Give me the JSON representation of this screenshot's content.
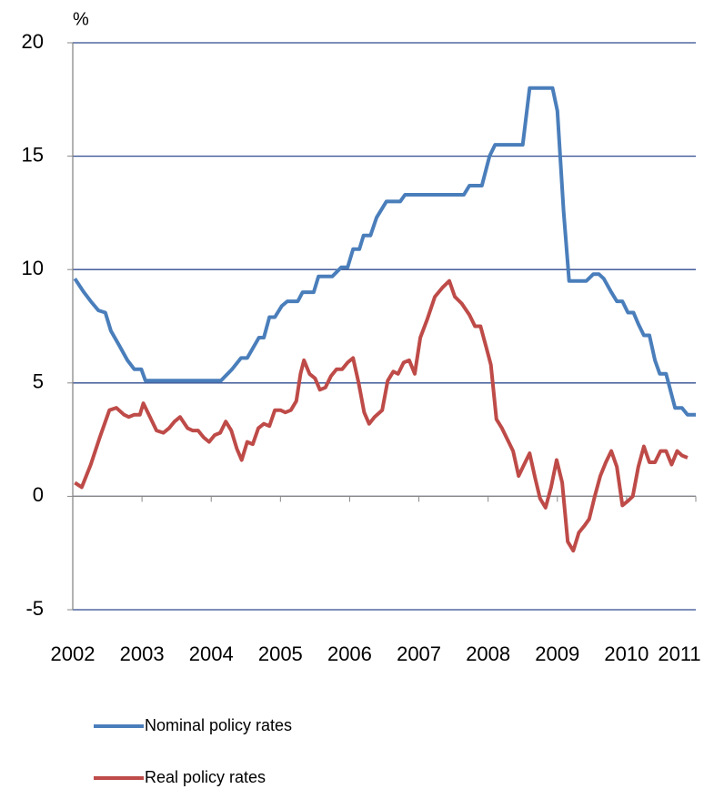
{
  "chart_data": {
    "type": "line",
    "y_label": "%",
    "xlim": [
      2002,
      2011
    ],
    "xticks": [
      2002,
      2003,
      2004,
      2005,
      2006,
      2007,
      2008,
      2009,
      2010,
      2011
    ],
    "ylim": [
      -5,
      20
    ],
    "yticks": [
      -5,
      0,
      5,
      10,
      15,
      20
    ],
    "grid": true,
    "legend": "bottom",
    "series": [
      {
        "name": "Nominal policy rates",
        "color": "#4a7ebb",
        "x": [
          2002.03,
          2002.16,
          2002.26,
          2002.37,
          2002.47,
          2002.55,
          2002.68,
          2002.79,
          2002.89,
          2002.99,
          2003.05,
          2004.14,
          2004.3,
          2004.43,
          2004.52,
          2004.69,
          2004.76,
          2004.84,
          2004.92,
          2005.02,
          2005.1,
          2005.25,
          2005.32,
          2005.48,
          2005.55,
          2005.75,
          2005.88,
          2005.97,
          2006.05,
          2006.14,
          2006.2,
          2006.3,
          2006.39,
          2006.53,
          2006.73,
          2006.8,
          2007.65,
          2007.73,
          2007.91,
          2008.02,
          2008.1,
          2008.5,
          2008.6,
          2008.93,
          2009.0,
          2009.09,
          2009.17,
          2009.42,
          2009.52,
          2009.6,
          2009.67,
          2009.78,
          2009.86,
          2009.94,
          2010.02,
          2010.1,
          2010.17,
          2010.25,
          2010.33,
          2010.41,
          2010.48,
          2010.57,
          2010.7,
          2010.8,
          2010.88,
          2011.0
        ],
        "values": [
          9.6,
          9.0,
          8.6,
          8.2,
          8.1,
          7.3,
          6.6,
          6.0,
          5.6,
          5.6,
          5.1,
          5.1,
          5.6,
          6.1,
          6.1,
          7.0,
          7.0,
          7.9,
          7.9,
          8.4,
          8.6,
          8.6,
          9.0,
          9.0,
          9.7,
          9.7,
          10.1,
          10.1,
          10.9,
          10.9,
          11.5,
          11.5,
          12.3,
          13.0,
          13.0,
          13.3,
          13.3,
          13.7,
          13.7,
          15.0,
          15.5,
          15.5,
          18.0,
          18.0,
          17.0,
          12.6,
          9.5,
          9.5,
          9.8,
          9.8,
          9.6,
          9.0,
          8.6,
          8.6,
          8.1,
          8.1,
          7.6,
          7.1,
          7.1,
          6.0,
          5.4,
          5.4,
          3.9,
          3.9,
          3.6,
          3.6
        ]
      },
      {
        "name": "Real policy rates",
        "color": "#be4b48",
        "x": [
          2002.03,
          2002.13,
          2002.26,
          2002.39,
          2002.53,
          2002.63,
          2002.74,
          2002.81,
          2002.89,
          2002.97,
          2003.02,
          2003.1,
          2003.21,
          2003.31,
          2003.39,
          2003.47,
          2003.55,
          2003.66,
          2003.73,
          2003.81,
          2003.89,
          2003.97,
          2004.05,
          2004.13,
          2004.21,
          2004.29,
          2004.37,
          2004.44,
          2004.52,
          2004.6,
          2004.68,
          2004.76,
          2004.84,
          2004.92,
          2005.0,
          2005.07,
          2005.15,
          2005.23,
          2005.29,
          2005.34,
          2005.42,
          2005.5,
          2005.57,
          2005.65,
          2005.73,
          2005.81,
          2005.89,
          2005.97,
          2006.05,
          2006.13,
          2006.21,
          2006.28,
          2006.36,
          2006.47,
          2006.55,
          2006.63,
          2006.7,
          2006.78,
          2006.86,
          2006.94,
          2007.02,
          2007.12,
          2007.23,
          2007.34,
          2007.44,
          2007.52,
          2007.62,
          2007.73,
          2007.81,
          2007.89,
          2007.97,
          2008.04,
          2008.12,
          2008.2,
          2008.28,
          2008.36,
          2008.44,
          2008.52,
          2008.6,
          2008.68,
          2008.75,
          2008.83,
          2008.91,
          2008.99,
          2009.07,
          2009.15,
          2009.23,
          2009.31,
          2009.39,
          2009.46,
          2009.54,
          2009.62,
          2009.7,
          2009.78,
          2009.86,
          2009.94,
          2010.02,
          2010.09,
          2010.17,
          2010.25,
          2010.33,
          2010.41,
          2010.49,
          2010.57,
          2010.65,
          2010.73,
          2010.8,
          2010.88
        ],
        "values": [
          0.6,
          0.4,
          1.4,
          2.6,
          3.8,
          3.9,
          3.6,
          3.5,
          3.6,
          3.6,
          4.1,
          3.6,
          2.9,
          2.8,
          3.0,
          3.3,
          3.5,
          3.0,
          2.9,
          2.9,
          2.6,
          2.4,
          2.7,
          2.8,
          3.3,
          2.9,
          2.1,
          1.6,
          2.4,
          2.3,
          3.0,
          3.2,
          3.1,
          3.8,
          3.8,
          3.7,
          3.8,
          4.2,
          5.4,
          6.0,
          5.4,
          5.2,
          4.7,
          4.8,
          5.3,
          5.6,
          5.6,
          5.9,
          6.1,
          5.0,
          3.7,
          3.2,
          3.5,
          3.8,
          5.1,
          5.5,
          5.4,
          5.9,
          6.0,
          5.4,
          7.0,
          7.8,
          8.8,
          9.2,
          9.5,
          8.8,
          8.5,
          8.0,
          7.5,
          7.5,
          6.6,
          5.8,
          3.4,
          3.0,
          2.5,
          2.0,
          0.9,
          1.4,
          1.9,
          0.8,
          -0.1,
          -0.5,
          0.4,
          1.6,
          0.6,
          -2.0,
          -2.4,
          -1.6,
          -1.3,
          -1.0,
          0.0,
          0.9,
          1.5,
          2.0,
          1.3,
          -0.4,
          -0.2,
          0.0,
          1.3,
          2.2,
          1.5,
          1.5,
          2.0,
          2.0,
          1.4,
          2.0,
          1.8,
          1.7
        ]
      }
    ]
  }
}
